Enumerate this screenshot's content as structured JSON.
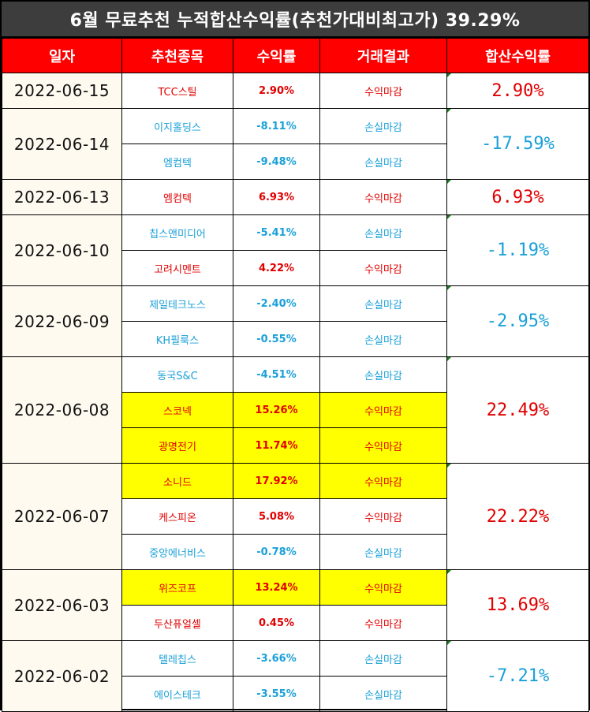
{
  "title": "6월 무료추천 누적합산수익률(추천가대비최고가) 39.29%",
  "headers": [
    "일자",
    "추천종목",
    "수익률",
    "거래결과",
    "합산수익률"
  ],
  "groups": [
    {
      "date": "2022-06-15",
      "total": "2.90%",
      "total_sign": "pos",
      "rows": [
        {
          "name": "TCC스틸",
          "rate": "2.90%",
          "result": "수익마감",
          "sign": "pos",
          "highlight": false
        }
      ]
    },
    {
      "date": "2022-06-14",
      "total": "-17.59%",
      "total_sign": "neg",
      "rows": [
        {
          "name": "이지홀딩스",
          "rate": "-8.11%",
          "result": "손실마감",
          "sign": "neg",
          "highlight": false
        },
        {
          "name": "엠컴텍",
          "rate": "-9.48%",
          "result": "손실마감",
          "sign": "neg",
          "highlight": false
        }
      ]
    },
    {
      "date": "2022-06-13",
      "total": "6.93%",
      "total_sign": "pos",
      "rows": [
        {
          "name": "엠컴텍",
          "rate": "6.93%",
          "result": "수익마감",
          "sign": "pos",
          "highlight": false
        }
      ]
    },
    {
      "date": "2022-06-10",
      "total": "-1.19%",
      "total_sign": "neg",
      "rows": [
        {
          "name": "칩스앤미디어",
          "rate": "-5.41%",
          "result": "손실마감",
          "sign": "neg",
          "highlight": false
        },
        {
          "name": "고려시멘트",
          "rate": "4.22%",
          "result": "수익마감",
          "sign": "pos",
          "highlight": false
        }
      ]
    },
    {
      "date": "2022-06-09",
      "total": "-2.95%",
      "total_sign": "neg",
      "rows": [
        {
          "name": "제일테크노스",
          "rate": "-2.40%",
          "result": "손실마감",
          "sign": "neg",
          "highlight": false
        },
        {
          "name": "KH필룩스",
          "rate": "-0.55%",
          "result": "손실마감",
          "sign": "neg",
          "highlight": false
        }
      ]
    },
    {
      "date": "2022-06-08",
      "total": "22.49%",
      "total_sign": "pos",
      "rows": [
        {
          "name": "동국S&C",
          "rate": "-4.51%",
          "result": "손실마감",
          "sign": "neg",
          "highlight": false
        },
        {
          "name": "스코넥",
          "rate": "15.26%",
          "result": "수익마감",
          "sign": "pos",
          "highlight": true
        },
        {
          "name": "광명전기",
          "rate": "11.74%",
          "result": "수익마감",
          "sign": "pos",
          "highlight": true
        }
      ]
    },
    {
      "date": "2022-06-07",
      "total": "22.22%",
      "total_sign": "pos",
      "rows": [
        {
          "name": "소니드",
          "rate": "17.92%",
          "result": "수익마감",
          "sign": "pos",
          "highlight": true
        },
        {
          "name": "케스피온",
          "rate": "5.08%",
          "result": "수익마감",
          "sign": "pos",
          "highlight": false
        },
        {
          "name": "중앙에너비스",
          "rate": "-0.78%",
          "result": "손실마감",
          "sign": "neg",
          "highlight": false
        }
      ]
    },
    {
      "date": "2022-06-03",
      "total": "13.69%",
      "total_sign": "pos",
      "rows": [
        {
          "name": "위즈코프",
          "rate": "13.24%",
          "result": "수익마감",
          "sign": "pos",
          "highlight": true
        },
        {
          "name": "두산퓨얼셀",
          "rate": "0.45%",
          "result": "수익마감",
          "sign": "pos",
          "highlight": false
        }
      ]
    },
    {
      "date": "2022-06-02",
      "total": "-7.21%",
      "total_sign": "neg",
      "rows": [
        {
          "name": "텔레칩스",
          "rate": "-3.66%",
          "result": "손실마감",
          "sign": "neg",
          "highlight": false
        },
        {
          "name": "에이스테크",
          "rate": "-3.55%",
          "result": "손실마감",
          "sign": "neg",
          "highlight": false
        }
      ]
    }
  ],
  "colors": {
    "positive": "#e00000",
    "negative": "#1aa0d8",
    "highlight": "#ffff00",
    "header_bg": "#ff0000",
    "title_bg": "#3d3d3d"
  }
}
